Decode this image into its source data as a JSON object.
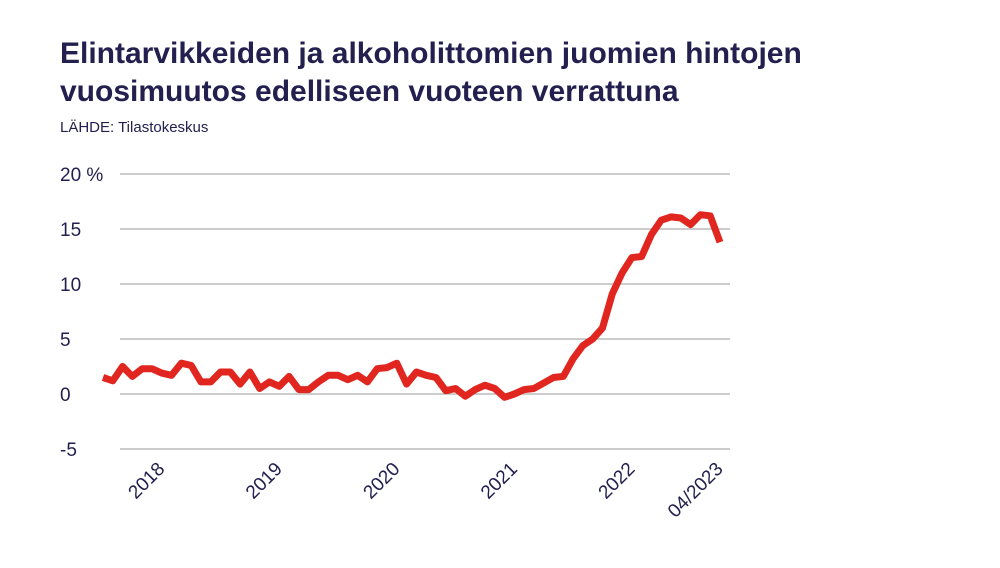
{
  "chart_data": {
    "type": "line",
    "title_lines": [
      "Elintarvikkeiden ja alkoholittomien juomien hintojen",
      "vuosimuutos edelliseen vuoteen verrattuna"
    ],
    "source": "LÄHDE: Tilastokeskus",
    "categories": [
      null,
      null,
      null,
      null,
      null,
      null,
      "2018",
      null,
      null,
      null,
      null,
      null,
      null,
      null,
      null,
      null,
      null,
      null,
      "2019",
      null,
      null,
      null,
      null,
      null,
      null,
      null,
      null,
      null,
      null,
      null,
      "2020",
      null,
      null,
      null,
      null,
      null,
      null,
      null,
      null,
      null,
      null,
      null,
      "2021",
      null,
      null,
      null,
      null,
      null,
      null,
      null,
      null,
      null,
      null,
      null,
      "2022",
      null,
      null,
      null,
      null,
      null,
      null,
      null,
      null,
      "04/2023"
    ],
    "series": [
      {
        "color": "#e0261f",
        "values": [
          1.5,
          1.2,
          2.5,
          1.6,
          2.3,
          2.3,
          1.9,
          1.7,
          2.8,
          2.6,
          1.1,
          1.1,
          2.0,
          2.0,
          0.9,
          2.0,
          0.5,
          1.1,
          0.7,
          1.6,
          0.4,
          0.4,
          1.1,
          1.7,
          1.7,
          1.3,
          1.7,
          1.1,
          2.3,
          2.4,
          2.8,
          0.9,
          2.0,
          1.7,
          1.5,
          0.3,
          0.5,
          -0.2,
          0.4,
          0.8,
          0.5,
          -0.3,
          0.0,
          0.4,
          0.5,
          1.0,
          1.5,
          1.6,
          3.2,
          4.4,
          5.0,
          6.0,
          9.1,
          11.0,
          12.4,
          12.5,
          14.5,
          15.8,
          16.1,
          16.0,
          15.4,
          16.3,
          16.2,
          13.8
        ]
      }
    ],
    "ylim": [
      -5,
      20
    ],
    "yticks": [
      -5,
      0,
      5,
      10,
      15,
      {
        "value": 20,
        "label": "20 %"
      }
    ],
    "grid": true
  }
}
